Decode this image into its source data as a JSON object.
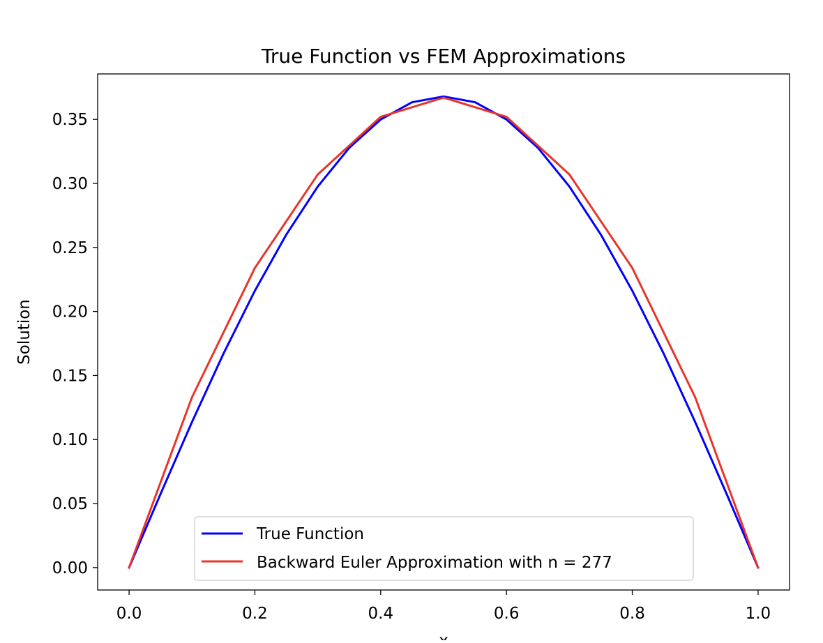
{
  "chart_data": {
    "type": "line",
    "title": "True Function vs FEM Approximations",
    "xlabel": "x",
    "ylabel": "Solution",
    "xlim": [
      -0.05,
      1.05
    ],
    "ylim": [
      -0.0175,
      0.3855
    ],
    "x_ticks": [
      0.0,
      0.2,
      0.4,
      0.6,
      0.8,
      1.0
    ],
    "x_tick_labels": [
      "0.0",
      "0.2",
      "0.4",
      "0.6",
      "0.8",
      "1.0"
    ],
    "y_ticks": [
      0.0,
      0.05,
      0.1,
      0.15,
      0.2,
      0.25,
      0.3,
      0.35
    ],
    "y_tick_labels": [
      "0.00",
      "0.05",
      "0.10",
      "0.15",
      "0.20",
      "0.25",
      "0.30",
      "0.35"
    ],
    "grid": false,
    "legend_position": "lower-center",
    "series": [
      {
        "name": "True Function",
        "color": "#0000ff",
        "x": [
          0.0,
          0.05,
          0.1,
          0.15,
          0.2,
          0.25,
          0.3,
          0.35,
          0.4,
          0.45,
          0.5,
          0.55,
          0.6,
          0.65,
          0.7,
          0.75,
          0.8,
          0.85,
          0.9,
          0.95,
          1.0
        ],
        "y": [
          0.0,
          0.0575,
          0.1137,
          0.167,
          0.2162,
          0.2601,
          0.2976,
          0.3278,
          0.3499,
          0.3634,
          0.3679,
          0.3634,
          0.3499,
          0.3278,
          0.2976,
          0.2601,
          0.2162,
          0.167,
          0.1137,
          0.0575,
          0.0
        ]
      },
      {
        "name": "Backward Euler Approximation with n = 277",
        "color": "#e8352a",
        "x": [
          0.0,
          0.1,
          0.2,
          0.3,
          0.4,
          0.5,
          0.6,
          0.7,
          0.8,
          0.9,
          1.0
        ],
        "y": [
          0.0,
          0.133,
          0.234,
          0.307,
          0.352,
          0.367,
          0.352,
          0.307,
          0.234,
          0.133,
          0.0
        ]
      }
    ]
  }
}
